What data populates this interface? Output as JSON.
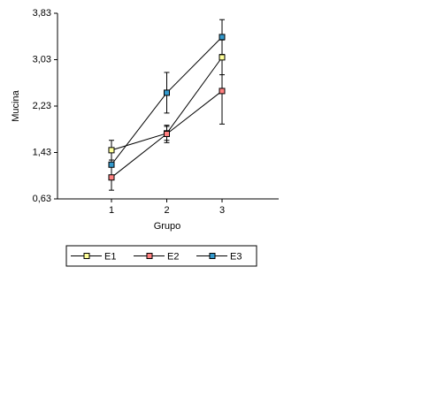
{
  "chart_data": {
    "type": "line",
    "xlabel": "Grupo",
    "ylabel": "Mucina",
    "x": [
      1,
      2,
      3
    ],
    "xlim": [
      0,
      4
    ],
    "xticks": [
      1,
      2,
      3
    ],
    "ylim": [
      0.63,
      3.83
    ],
    "yticks": [
      {
        "value": 0.63,
        "label": "0,63"
      },
      {
        "value": 1.43,
        "label": "1,43"
      },
      {
        "value": 2.23,
        "label": "2,23"
      },
      {
        "value": 3.03,
        "label": "3,03"
      },
      {
        "value": 3.83,
        "label": "3,83"
      }
    ],
    "series": [
      {
        "name": "E1",
        "color": "#ffff99",
        "values": [
          1.47,
          1.76,
          3.07
        ],
        "errors": [
          0.17,
          0.12,
          0.3
        ]
      },
      {
        "name": "E2",
        "color": "#ff8080",
        "values": [
          1.0,
          1.75,
          2.49
        ],
        "errors": [
          0.22,
          0.15,
          0.57
        ]
      },
      {
        "name": "E3",
        "color": "#3399cc",
        "values": [
          1.22,
          2.46,
          3.42
        ],
        "errors": [
          0.25,
          0.35,
          0.3
        ]
      }
    ],
    "legend": "bottom"
  }
}
